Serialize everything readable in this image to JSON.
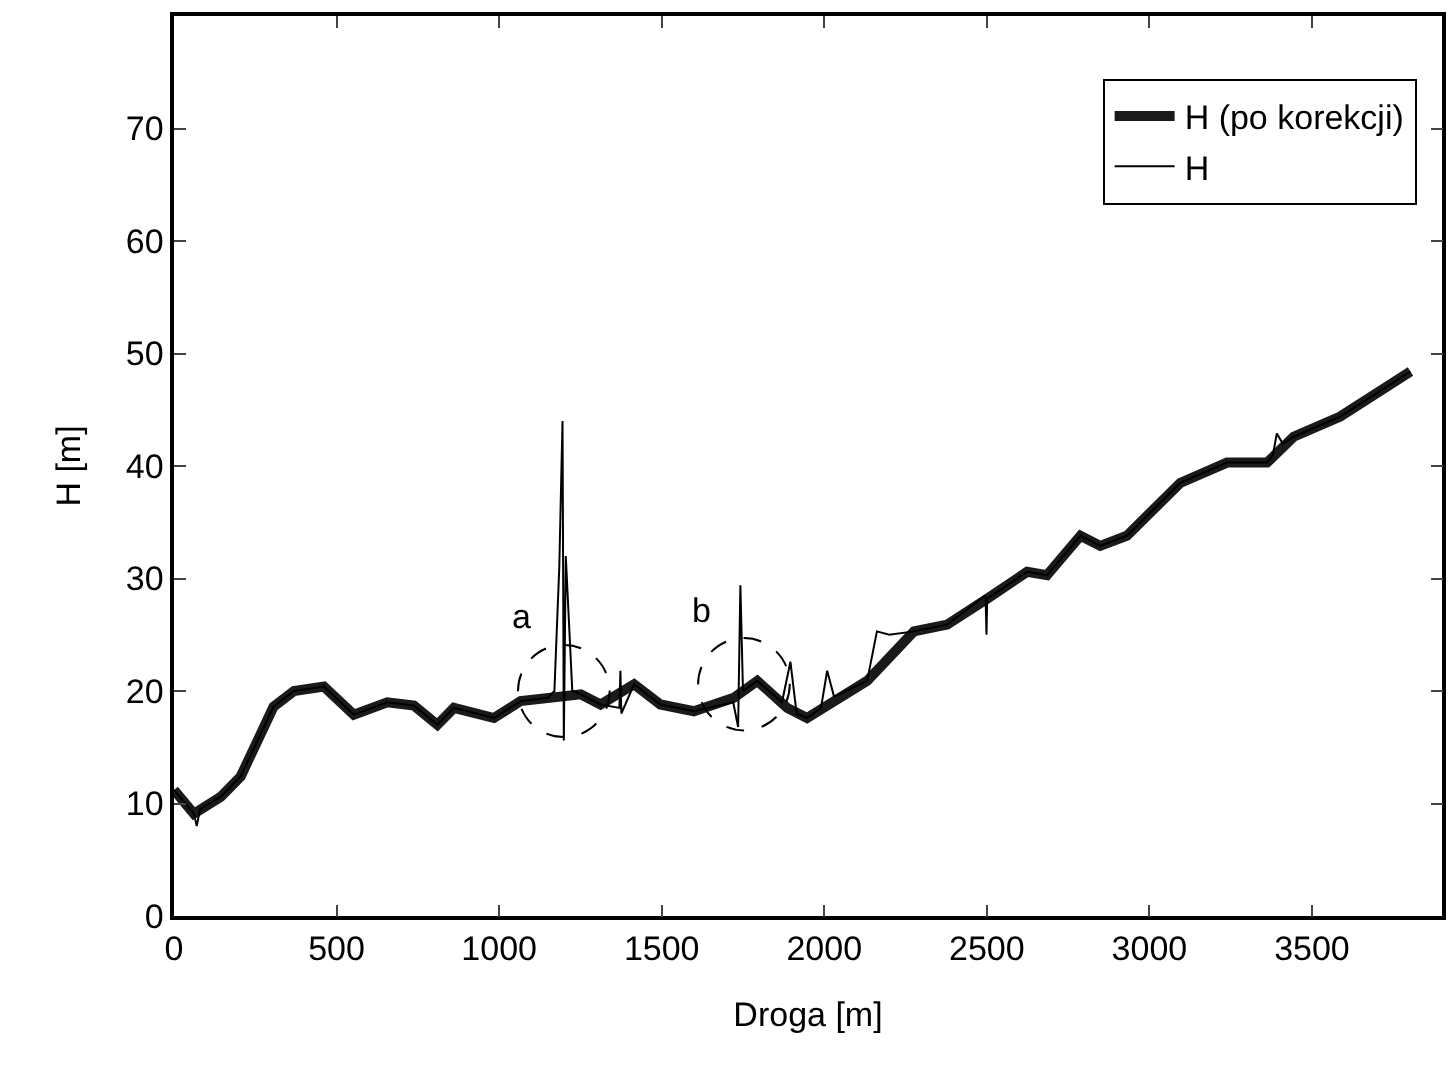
{
  "chart_data": {
    "type": "line",
    "xlabel": "Droga [m]",
    "ylabel": "H [m]",
    "xlim": [
      0,
      3900
    ],
    "ylim": [
      0,
      80
    ],
    "xticks": [
      0,
      500,
      1000,
      1500,
      2000,
      2500,
      3000,
      3500
    ],
    "yticks": [
      0,
      10,
      20,
      30,
      40,
      50,
      60,
      70
    ],
    "grid": false,
    "legend": "top right",
    "marker": "none",
    "line_style": "solid",
    "annotations": [
      {
        "text": "a",
        "x": 1199,
        "y": 20.0
      },
      {
        "text": "b",
        "x": 1753,
        "y": 20.6
      }
    ],
    "series": [
      {
        "name": "H (po korekcji)",
        "color": "#1a1a1a",
        "x": [
          0,
          61,
          144,
          205,
          306,
          369,
          461,
          553,
          656,
          738,
          810,
          861,
          984,
          1066,
          1251,
          1312,
          1415,
          1496,
          1599,
          1722,
          1794,
          1886,
          1947,
          2132,
          2276,
          2378,
          2501,
          2624,
          2685,
          2788,
          2849,
          2931,
          3095,
          3239,
          3362,
          3444,
          3587,
          3803
        ],
        "values": [
          11.2,
          9.1,
          10.6,
          12.4,
          18.6,
          20.0,
          20.4,
          17.9,
          19.0,
          18.7,
          17.0,
          18.5,
          17.6,
          19.1,
          19.7,
          18.8,
          20.6,
          18.8,
          18.2,
          19.4,
          20.9,
          18.5,
          17.6,
          20.9,
          25.3,
          25.9,
          28.2,
          30.6,
          30.3,
          33.8,
          32.9,
          33.8,
          38.5,
          40.3,
          40.3,
          42.6,
          44.4,
          48.4
        ]
      },
      {
        "name": "H",
        "color": "#000000",
        "x": [
          0,
          61,
          70,
          80,
          144,
          205,
          306,
          369,
          461,
          553,
          656,
          738,
          810,
          861,
          984,
          1066,
          1150,
          1170,
          1185,
          1195,
          1199,
          1205,
          1225,
          1251,
          1312,
          1370,
          1373,
          1376,
          1415,
          1496,
          1599,
          1720,
          1735,
          1742,
          1750,
          1794,
          1870,
          1896,
          1915,
          1947,
          1990,
          2009,
          2030,
          2132,
          2162,
          2200,
          2276,
          2378,
          2496,
          2499,
          2501,
          2624,
          2685,
          2788,
          2849,
          2931,
          3095,
          3239,
          3362,
          3380,
          3392,
          3410,
          3444,
          3587,
          3803
        ],
        "values": [
          11.2,
          9.1,
          8.0,
          9.5,
          10.6,
          12.4,
          18.6,
          20.0,
          20.4,
          17.9,
          19.0,
          18.7,
          17.0,
          18.5,
          17.6,
          19.1,
          19.4,
          20.0,
          31.0,
          44.0,
          15.6,
          32.0,
          20.0,
          19.7,
          18.8,
          18.5,
          21.8,
          18.0,
          20.6,
          18.8,
          18.2,
          19.0,
          16.8,
          29.4,
          20.0,
          20.9,
          19.0,
          22.6,
          18.0,
          17.6,
          18.5,
          21.8,
          19.5,
          20.9,
          25.3,
          25.0,
          25.3,
          25.9,
          28.5,
          25.0,
          28.2,
          30.6,
          30.3,
          33.8,
          32.9,
          33.8,
          38.5,
          40.3,
          40.3,
          41.0,
          42.9,
          42.0,
          42.6,
          44.4,
          48.4
        ]
      }
    ]
  }
}
